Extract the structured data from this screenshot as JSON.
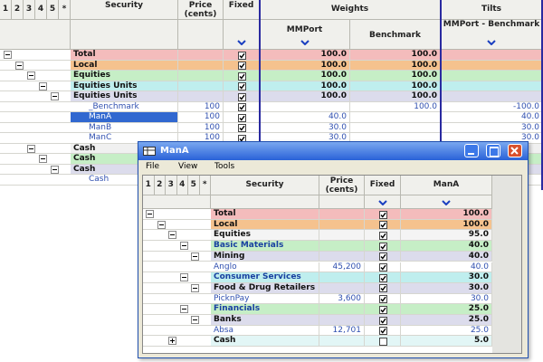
{
  "back": {
    "levels": [
      "1",
      "2",
      "3",
      "4",
      "5",
      "*"
    ],
    "headers": {
      "security": "Security",
      "price": "Price (cents)",
      "fixed": "Fixed",
      "weights": "Weights",
      "mmport": "MMPort",
      "benchmark": "Benchmark",
      "tilts": "Tilts",
      "tilt": "MMPort - Benchmark"
    },
    "rows": [
      {
        "security": "Total",
        "fixed": true,
        "mmport": "100.0",
        "benchmark": "100.0",
        "color": "#f4bcbc"
      },
      {
        "security": "Local",
        "fixed": true,
        "mmport": "100.0",
        "benchmark": "100.0",
        "color": "#f5c28e"
      },
      {
        "security": "Equities",
        "fixed": true,
        "mmport": "100.0",
        "benchmark": "100.0",
        "color": "#c6eec6"
      },
      {
        "security": "Equities Units",
        "fixed": true,
        "mmport": "100.0",
        "benchmark": "100.0",
        "color": "#bfeeee"
      },
      {
        "security": "Equities Units",
        "fixed": true,
        "mmport": "100.0",
        "benchmark": "100.0",
        "color": "#dcdcec"
      },
      {
        "security": "_Benchmark",
        "price": "100",
        "fixed": true,
        "benchmark": "100.0",
        "tilt": "-100.0",
        "color": "#ffffff"
      },
      {
        "security": "ManA",
        "price": "100",
        "fixed": true,
        "mmport": "40.0",
        "tilt": "40.0",
        "color": "#ffffff"
      },
      {
        "security": "ManB",
        "price": "100",
        "fixed": true,
        "mmport": "30.0",
        "tilt": "30.0",
        "color": "#ffffff"
      },
      {
        "security": "ManC",
        "price": "100",
        "fixed": true,
        "mmport": "30.0",
        "tilt": "30.0",
        "color": "#ffffff"
      },
      {
        "security": "Cash",
        "color": "#f0f0f0"
      },
      {
        "security": "Cash",
        "color": "#c6eec6"
      },
      {
        "security": "Cash",
        "color": "#dcdcec"
      },
      {
        "security": "Cash",
        "color": "#ffffff"
      }
    ]
  },
  "window": {
    "title": "ManA",
    "menu": [
      "File",
      "View",
      "Tools"
    ],
    "levels": [
      "1",
      "2",
      "3",
      "4",
      "5",
      "*"
    ],
    "headers": {
      "security": "Security",
      "price": "Price (cents)",
      "fixed": "Fixed",
      "mana": "ManA"
    },
    "rows": [
      {
        "security": "Total",
        "fixed": true,
        "mana": "100.0",
        "color": "#f4bcbc"
      },
      {
        "security": "Local",
        "fixed": true,
        "mana": "100.0",
        "color": "#f5c28e"
      },
      {
        "security": "Equities",
        "fixed": true,
        "mana": "95.0",
        "color": "#f4f4f4"
      },
      {
        "security": "Basic Materials",
        "fixed": true,
        "mana": "40.0",
        "color": "#c6eec6"
      },
      {
        "security": "Mining",
        "fixed": true,
        "mana": "40.0",
        "color": "#dcdcec"
      },
      {
        "security": "Anglo",
        "price": "45,200",
        "fixed": true,
        "mana": "40.0",
        "color": "#ffffff"
      },
      {
        "security": "Consumer Services",
        "fixed": true,
        "mana": "30.0",
        "color": "#bfeeee"
      },
      {
        "security": "Food & Drug Retailers",
        "fixed": true,
        "mana": "30.0",
        "color": "#dcdcec"
      },
      {
        "security": "PicknPay",
        "price": "3,600",
        "fixed": true,
        "mana": "30.0",
        "color": "#ffffff"
      },
      {
        "security": "Financials",
        "fixed": true,
        "mana": "25.0",
        "color": "#c6eec6"
      },
      {
        "security": "Banks",
        "fixed": true,
        "mana": "25.0",
        "color": "#dcdcec"
      },
      {
        "security": "Absa",
        "price": "12,701",
        "fixed": true,
        "mana": "25.0",
        "color": "#ffffff"
      },
      {
        "security": "Cash",
        "fixed": false,
        "mana": "5.0",
        "color": "#e2f6f6"
      }
    ]
  }
}
